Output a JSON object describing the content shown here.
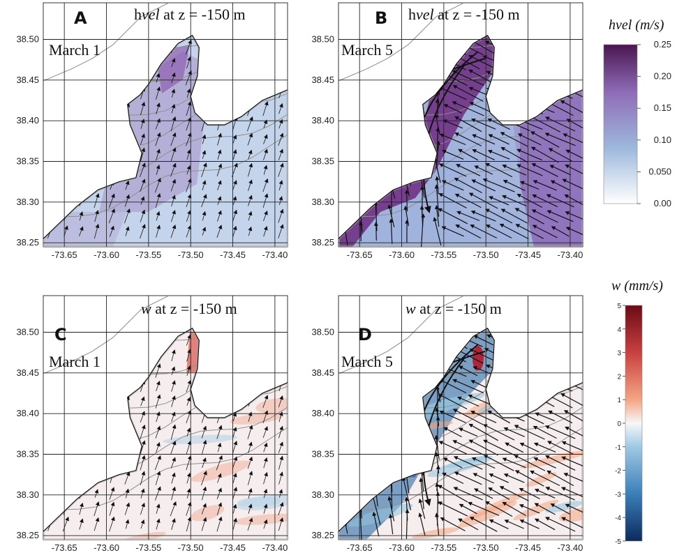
{
  "figure": {
    "panels": [
      {
        "id": "A",
        "letter": "A",
        "title": "hvel at z = -150 m",
        "title_var": "vel",
        "title_prefix": "h",
        "title_suffix": " at z = -150 m",
        "date": "March 1",
        "field": "hvel",
        "variant": "mar1"
      },
      {
        "id": "B",
        "letter": "B",
        "title": "hvel at z = -150 m",
        "title_var": "vel",
        "title_prefix": "h",
        "title_suffix": " at z = -150 m",
        "date": "March 5",
        "field": "hvel",
        "variant": "mar5"
      },
      {
        "id": "C",
        "letter": "C",
        "title": "w at z = -150 m",
        "title_var": "w",
        "title_prefix": "",
        "title_suffix": " at z = -150 m",
        "date": "March 1",
        "field": "w",
        "variant": "mar1"
      },
      {
        "id": "D",
        "letter": "D",
        "title": "w at z = -150 m",
        "title_var": "w",
        "title_prefix": "",
        "title_suffix": " at z = -150 m",
        "date": "March 5",
        "field": "w",
        "variant": "mar5"
      }
    ],
    "lat_ticks": [
      "38.50",
      "38.45",
      "38.40",
      "38.35",
      "38.30",
      "38.25"
    ],
    "lat_values": [
      38.5,
      38.45,
      38.4,
      38.35,
      38.3,
      38.25
    ],
    "lon_ticks": [
      "-73.65",
      "-73.60",
      "-73.55",
      "-73.50",
      "-73.45",
      "-73.40"
    ],
    "lon_values": [
      -73.65,
      -73.6,
      -73.55,
      -73.5,
      -73.45,
      -73.4
    ],
    "lon_range": [
      -73.675,
      -73.385
    ],
    "lat_range": [
      38.245,
      38.545
    ],
    "colorbars": [
      {
        "id": "hvel",
        "title": "hvel (m/s)",
        "ticks": [
          "0.25",
          "0.20",
          "0.15",
          "0.10",
          "0.050",
          "0.00"
        ],
        "values": [
          0.25,
          0.2,
          0.15,
          0.1,
          0.05,
          0.0
        ],
        "range": [
          0.0,
          0.25
        ],
        "colors": [
          "#ffffff",
          "#9db8dc",
          "#8f6cb8",
          "#4a1650"
        ]
      },
      {
        "id": "w",
        "title": "w (mm/s)",
        "ticks": [
          "5",
          "4",
          "3",
          "2",
          "1",
          "0",
          "-1",
          "-2",
          "-3",
          "-4",
          "-5"
        ],
        "values": [
          5,
          4,
          3,
          2,
          1,
          0,
          -1,
          -2,
          -3,
          -4,
          -5
        ],
        "range": [
          -5,
          5
        ],
        "colors": [
          "#0b2a5e",
          "#3b7fb8",
          "#9fc9e3",
          "#f7f7f7",
          "#f4a582",
          "#c94040",
          "#6b0b15"
        ]
      }
    ]
  }
}
